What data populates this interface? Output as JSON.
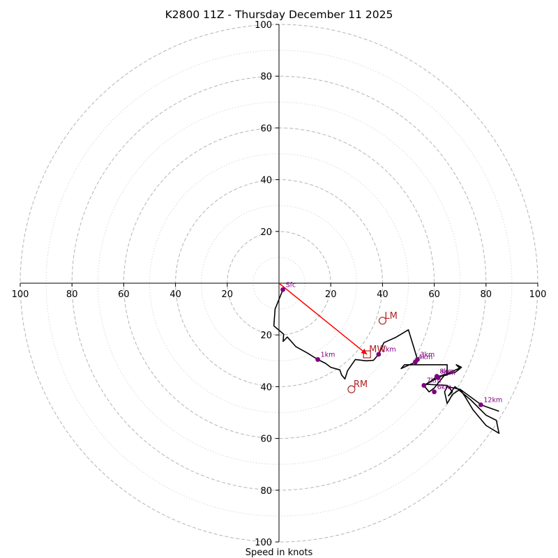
{
  "chart_data": {
    "type": "hodograph",
    "title": "K2800 11Z - Thursday December 11 2025",
    "xlabel": "Speed in knots",
    "radial_range": [
      0,
      100
    ],
    "major_rings": [
      20,
      40,
      60,
      80,
      100
    ],
    "minor_rings": [
      10,
      30,
      50,
      70,
      90
    ],
    "tick_labels": {
      "left": [
        "100",
        "80",
        "60",
        "40",
        "20"
      ],
      "right": [
        "20",
        "40",
        "60",
        "80",
        "100"
      ],
      "top": [
        "100",
        "80",
        "60",
        "40",
        "20"
      ],
      "bottom": [
        "20",
        "40",
        "60",
        "80",
        "100"
      ]
    },
    "grid": true,
    "wind_trace": {
      "color": "#000000",
      "points": [
        [
          1.5,
          -2.5
        ],
        [
          -1.5,
          -10
        ],
        [
          -2,
          -16.5
        ],
        [
          1.8,
          -19.7
        ],
        [
          1.6,
          -22.5
        ],
        [
          3.2,
          -20.8
        ],
        [
          6.5,
          -24.5
        ],
        [
          11,
          -27
        ],
        [
          15,
          -29.5
        ],
        [
          18,
          -31
        ],
        [
          20,
          -32.5
        ],
        [
          23.5,
          -33.5
        ],
        [
          24.2,
          -35.5
        ],
        [
          25.5,
          -37
        ],
        [
          26.5,
          -33.8
        ],
        [
          29.5,
          -29.5
        ],
        [
          33.7,
          -30
        ],
        [
          36.5,
          -29.8
        ],
        [
          38.5,
          -27.5
        ],
        [
          39.5,
          -25.5
        ],
        [
          40.5,
          -23
        ],
        [
          45,
          -21
        ],
        [
          50,
          -18
        ],
        [
          52,
          -24.5
        ],
        [
          53.5,
          -29.5
        ],
        [
          52.7,
          -30.5
        ],
        [
          47.2,
          -33
        ],
        [
          48.5,
          -31.5
        ],
        [
          57.5,
          -31.5
        ],
        [
          65,
          -31.5
        ],
        [
          65,
          -35.5
        ],
        [
          61,
          -36
        ],
        [
          58.5,
          -38
        ],
        [
          56,
          -39.5
        ],
        [
          61.5,
          -36.5
        ],
        [
          70.5,
          -32.5
        ],
        [
          68.5,
          -31.5
        ],
        [
          70,
          -33
        ],
        [
          68,
          -34.5
        ],
        [
          64,
          -35.5
        ],
        [
          62,
          -38
        ],
        [
          60,
          -40.5
        ],
        [
          58,
          -42
        ],
        [
          55.5,
          -39
        ],
        [
          65,
          -39.5
        ],
        [
          65.5,
          -40
        ],
        [
          67,
          -42
        ],
        [
          65.5,
          -43.5
        ],
        [
          68,
          -40
        ],
        [
          74,
          -45
        ],
        [
          80,
          -51
        ],
        [
          84,
          -53
        ],
        [
          85,
          -58
        ],
        [
          80,
          -55
        ],
        [
          75,
          -49
        ],
        [
          72,
          -44
        ],
        [
          70,
          -41
        ],
        [
          67,
          -43
        ],
        [
          65,
          -46.5
        ],
        [
          64,
          -42
        ],
        [
          65,
          -40
        ],
        [
          70,
          -41
        ],
        [
          77.5,
          -46.5
        ],
        [
          78,
          -47
        ],
        [
          85,
          -49.5
        ]
      ]
    },
    "height_markers": {
      "color": "#800080",
      "points": [
        {
          "label": "Sfc",
          "u": 1.5,
          "v": -2.5
        },
        {
          "label": "1km",
          "u": 15,
          "v": -29.5
        },
        {
          "label": "2km",
          "u": 38.5,
          "v": -27.5
        },
        {
          "label": "3km",
          "u": 53.5,
          "v": -29.5
        },
        {
          "label": "4km",
          "u": 52.7,
          "v": -30.5
        },
        {
          "label": "5km",
          "u": 61.5,
          "v": -36.5
        },
        {
          "label": "6km",
          "u": 60,
          "v": -42
        },
        {
          "label": "7km",
          "u": 56,
          "v": -39.5
        },
        {
          "label": "8km",
          "u": 61,
          "v": -36
        },
        {
          "label": "12km",
          "u": 78,
          "v": -47
        }
      ]
    },
    "motion_markers": {
      "color": "#b22222",
      "points": [
        {
          "label": "LM",
          "u": 40,
          "v": -14.5,
          "marker": "circle"
        },
        {
          "label": "MW",
          "u": 34,
          "v": -27.5,
          "marker": "square"
        },
        {
          "label": "RM",
          "u": 28,
          "v": -41,
          "marker": "circle"
        }
      ]
    },
    "mean_wind_vector": {
      "color": "#ff0000",
      "from": [
        0,
        0
      ],
      "to": [
        34,
        -27.5
      ]
    }
  }
}
